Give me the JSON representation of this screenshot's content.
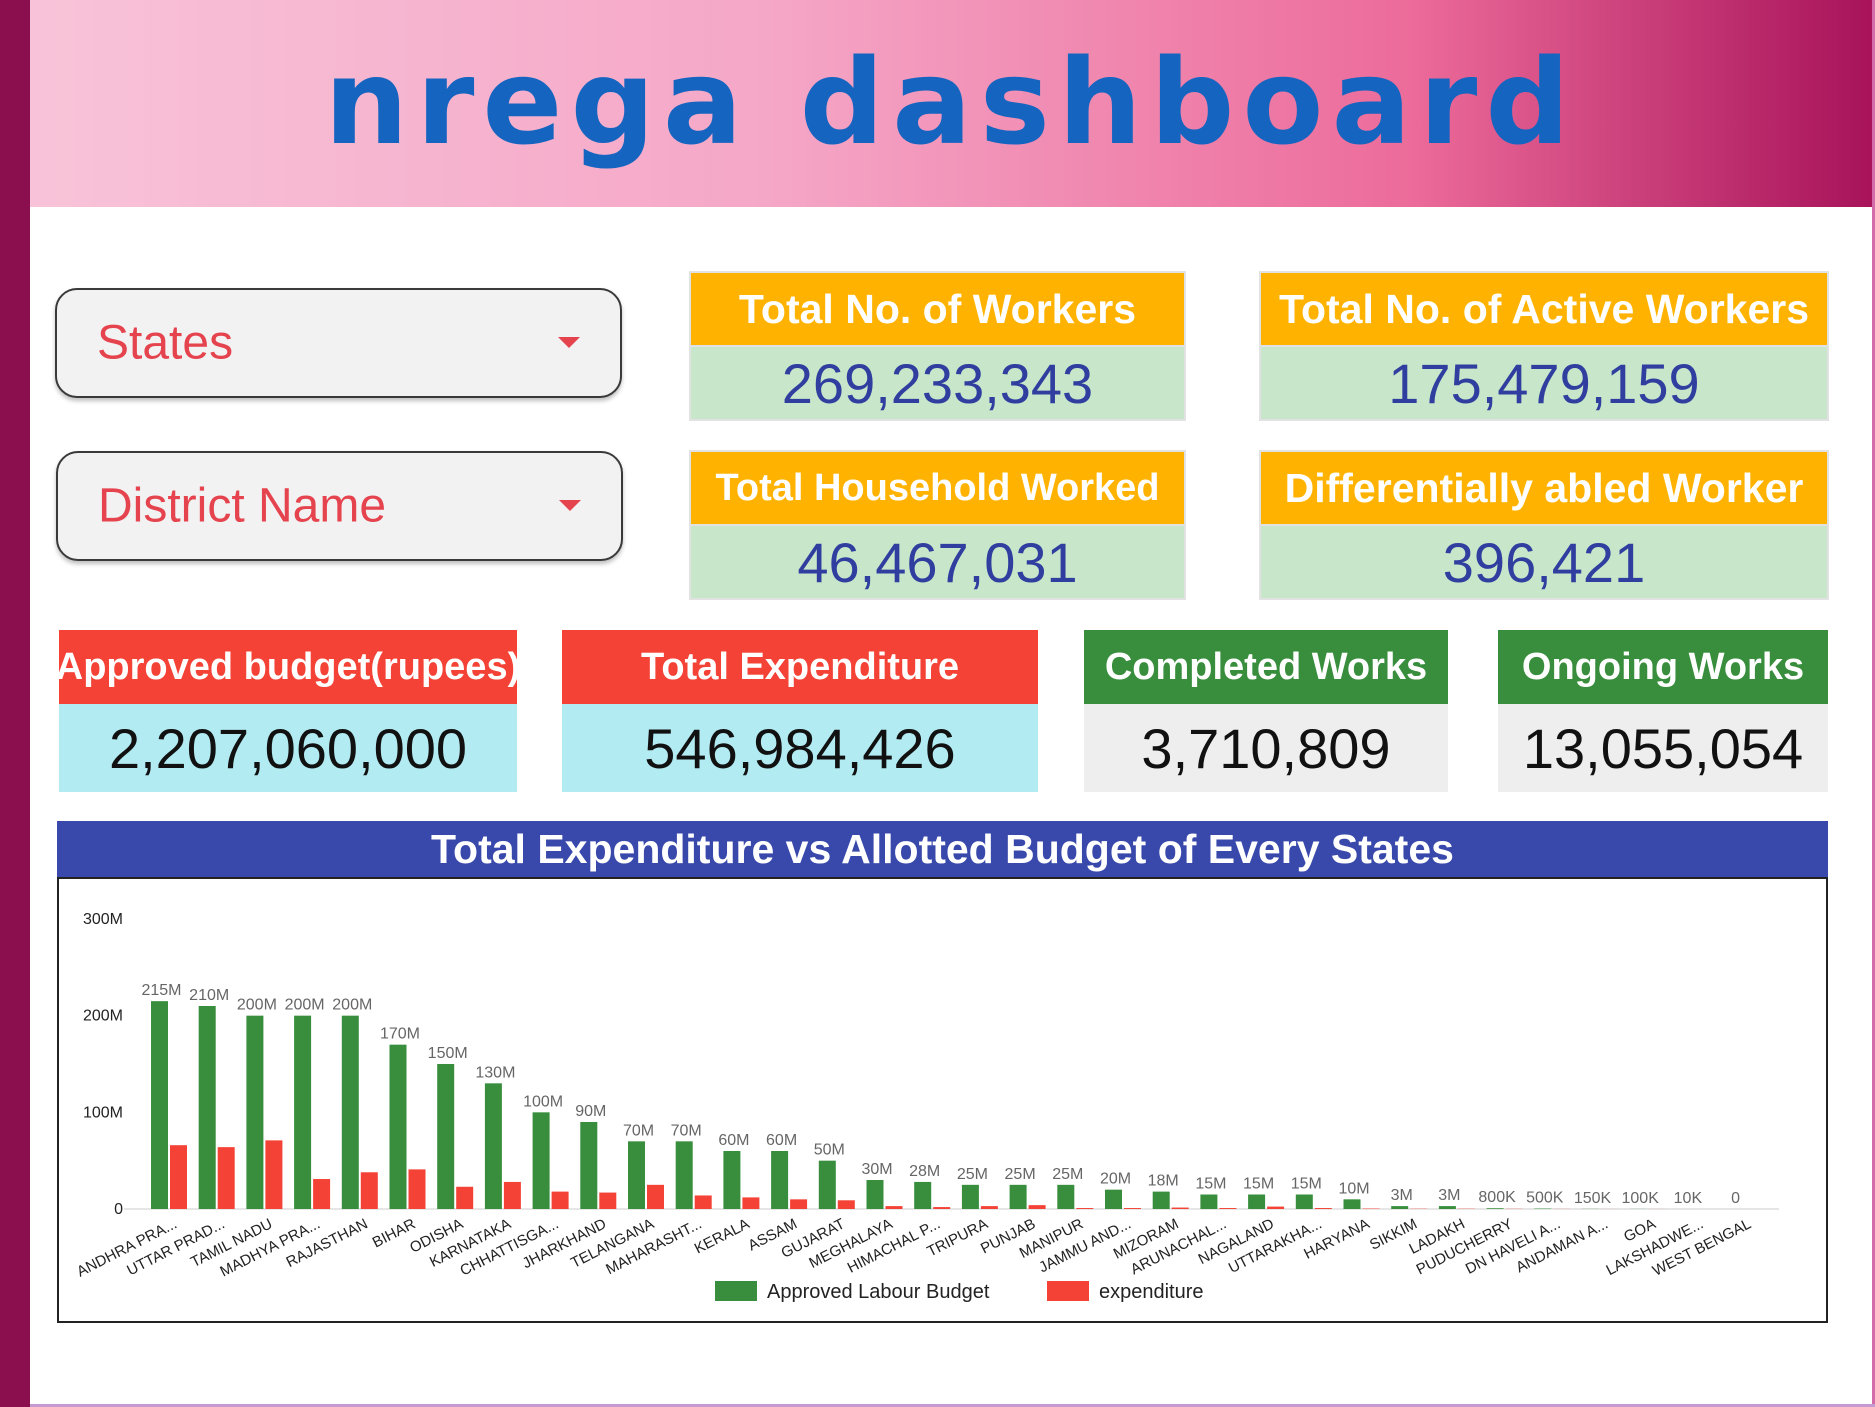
{
  "header": {
    "title": "Nrega Dashboard"
  },
  "filters": {
    "states_label": "States",
    "district_label": "District Name"
  },
  "kpis": {
    "total_workers": {
      "label": "Total No. of Workers",
      "value": "269,233,343"
    },
    "active_workers": {
      "label": "Total No. of Active Workers",
      "value": "175,479,159"
    },
    "household_worked": {
      "label": "Total Household Worked",
      "value": "46,467,031"
    },
    "differently_abled": {
      "label": "Differentially abled Worker",
      "value": "396,421"
    },
    "approved_budget": {
      "label": "Approved budget(rupees)",
      "value": "2,207,060,000"
    },
    "total_expenditure": {
      "label": "Total Expenditure",
      "value": "546,984,426"
    },
    "completed_works": {
      "label": "Completed Works",
      "value": "3,710,809"
    },
    "ongoing_works": {
      "label": "Ongoing Works",
      "value": "13,055,054"
    }
  },
  "colors": {
    "approved": "#388e3c",
    "expenditure": "#f44336",
    "title_bar": "#3949ab"
  },
  "chart_data": {
    "type": "bar",
    "title": "Total Expenditure vs Allotted Budget of Every States",
    "xlabel": "",
    "ylabel": "",
    "ylim": [
      0,
      300000000
    ],
    "y_ticks": [
      {
        "value": 0,
        "label": "0"
      },
      {
        "value": 100000000,
        "label": "100M"
      },
      {
        "value": 200000000,
        "label": "200M"
      },
      {
        "value": 300000000,
        "label": "300M"
      }
    ],
    "grid": false,
    "legend": "bottom-center",
    "categories": [
      "ANDHRA PRA...",
      "UTTAR PRAD...",
      "TAMIL NADU",
      "MADHYA PRA...",
      "RAJASTHAN",
      "BIHAR",
      "ODISHA",
      "KARNATAKA",
      "CHHATTISGA...",
      "JHARKHAND",
      "TELANGANA",
      "MAHARASHT...",
      "KERALA",
      "ASSAM",
      "GUJARAT",
      "MEGHALAYA",
      "HIMACHAL P...",
      "TRIPURA",
      "PUNJAB",
      "MANIPUR",
      "JAMMU AND...",
      "MIZORAM",
      "ARUNACHAL...",
      "NAGALAND",
      "UTTARAKHA...",
      "HARYANA",
      "SIKKIM",
      "LADAKH",
      "PUDUCHERRY",
      "DN HAVELI A...",
      "ANDAMAN A...",
      "GOA",
      "LAKSHADWE...",
      "WEST BENGAL"
    ],
    "series": [
      {
        "name": "Approved Labour Budget",
        "values": [
          215000000,
          210000000,
          200000000,
          200000000,
          200000000,
          170000000,
          150000000,
          130000000,
          100000000,
          90000000,
          70000000,
          70000000,
          60000000,
          60000000,
          50000000,
          30000000,
          28000000,
          25000000,
          25000000,
          25000000,
          20000000,
          18000000,
          15000000,
          15000000,
          15000000,
          10000000,
          3000000,
          3000000,
          800000,
          500000,
          150000,
          100000,
          10000,
          0
        ],
        "labels": [
          "215M",
          "210M",
          "200M",
          "200M",
          "200M",
          "170M",
          "150M",
          "130M",
          "100M",
          "90M",
          "70M",
          "70M",
          "60M",
          "60M",
          "50M",
          "30M",
          "28M",
          "25M",
          "25M",
          "25M",
          "20M",
          "18M",
          "15M",
          "15M",
          "15M",
          "10M",
          "3M",
          "3M",
          "800K",
          "500K",
          "150K",
          "100K",
          "10K",
          "0"
        ]
      },
      {
        "name": "expenditure",
        "values": [
          66000000,
          64000000,
          71000000,
          31000000,
          38000000,
          41000000,
          23000000,
          28000000,
          18000000,
          17000000,
          25000000,
          14000000,
          12000000,
          10000000,
          9000000,
          3000000,
          2000000,
          3000000,
          4000000,
          1000000,
          1000000,
          1500000,
          1000000,
          2500000,
          1000000,
          500000,
          300000,
          300000,
          200000,
          100000,
          50000,
          50000,
          5000,
          0
        ]
      }
    ]
  }
}
